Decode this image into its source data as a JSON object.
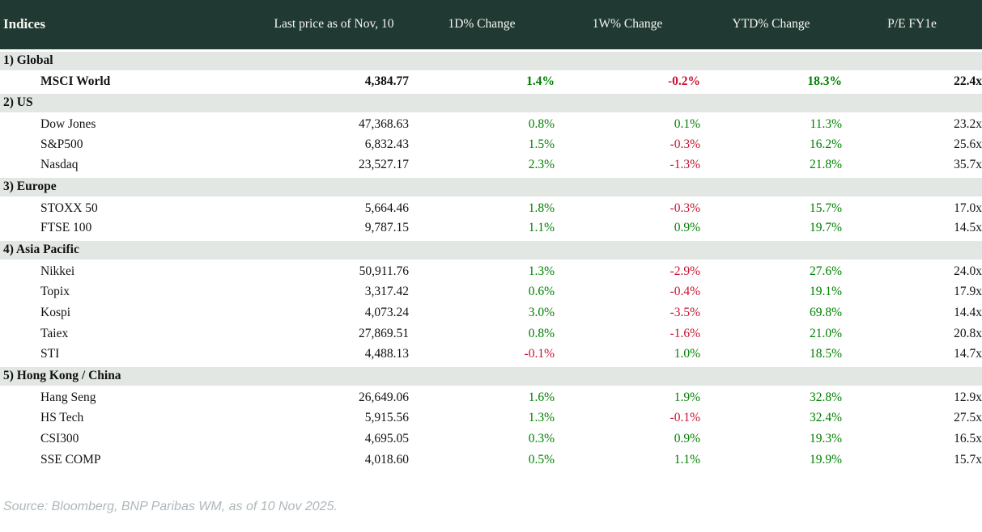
{
  "colors": {
    "header_bg": "#203a33",
    "section_bg": "#e3e7e3",
    "positive": "#008000",
    "negative": "#c8102e"
  },
  "table": {
    "columns": [
      "Indices",
      "Last price as of Nov, 10",
      "1D% Change",
      "1W% Change",
      "YTD% Change",
      "P/E FY1e"
    ],
    "sections": [
      {
        "label": "1) Global",
        "rows": [
          {
            "name": "MSCI World",
            "bold": true,
            "last": "4,384.77",
            "d1": "1.4%",
            "w1": "-0.2%",
            "ytd": "18.3%",
            "pe": "22.4x"
          }
        ]
      },
      {
        "label": "2) US",
        "rows": [
          {
            "name": "Dow Jones",
            "last": "47,368.63",
            "d1": "0.8%",
            "w1": "0.1%",
            "ytd": "11.3%",
            "pe": "23.2x"
          },
          {
            "name": "S&P500",
            "last": "6,832.43",
            "d1": "1.5%",
            "w1": "-0.3%",
            "ytd": "16.2%",
            "pe": "25.6x"
          },
          {
            "name": "Nasdaq",
            "last": "23,527.17",
            "d1": "2.3%",
            "w1": "-1.3%",
            "ytd": "21.8%",
            "pe": "35.7x"
          }
        ]
      },
      {
        "label": "3) Europe",
        "rows": [
          {
            "name": "STOXX 50",
            "last": "5,664.46",
            "d1": "1.8%",
            "w1": "-0.3%",
            "ytd": "15.7%",
            "pe": "17.0x"
          },
          {
            "name": "FTSE 100",
            "last": "9,787.15",
            "d1": "1.1%",
            "w1": "0.9%",
            "ytd": "19.7%",
            "pe": "14.5x"
          }
        ]
      },
      {
        "label": "4) Asia Pacific",
        "rows": [
          {
            "name": "Nikkei",
            "last": "50,911.76",
            "d1": "1.3%",
            "w1": "-2.9%",
            "ytd": "27.6%",
            "pe": "24.0x"
          },
          {
            "name": "Topix",
            "last": "3,317.42",
            "d1": "0.6%",
            "w1": "-0.4%",
            "ytd": "19.1%",
            "pe": "17.9x"
          },
          {
            "name": "Kospi",
            "last": "4,073.24",
            "d1": "3.0%",
            "w1": "-3.5%",
            "ytd": "69.8%",
            "pe": "14.4x"
          },
          {
            "name": "Taiex",
            "last": "27,869.51",
            "d1": "0.8%",
            "w1": "-1.6%",
            "ytd": "21.0%",
            "pe": "20.8x"
          },
          {
            "name": "STI",
            "last": "4,488.13",
            "d1": "-0.1%",
            "w1": "1.0%",
            "ytd": "18.5%",
            "pe": "14.7x"
          }
        ]
      },
      {
        "label": "5) Hong Kong / China",
        "rows": [
          {
            "name": "Hang Seng",
            "last": "26,649.06",
            "d1": "1.6%",
            "w1": "1.9%",
            "ytd": "32.8%",
            "pe": "12.9x"
          },
          {
            "name": "HS Tech",
            "last": "5,915.56",
            "d1": "1.3%",
            "w1": "-0.1%",
            "ytd": "32.4%",
            "pe": "27.5x"
          },
          {
            "name": "CSI300",
            "last": "4,695.05",
            "d1": "0.3%",
            "w1": "0.9%",
            "ytd": "19.3%",
            "pe": "16.5x"
          },
          {
            "name": "SSE COMP",
            "last": "4,018.60",
            "d1": "0.5%",
            "w1": "1.1%",
            "ytd": "19.9%",
            "pe": "15.7x"
          }
        ]
      }
    ]
  },
  "footer": {
    "source": "Source: Bloomberg, BNP Paribas WM, as of 10 Nov 2025."
  }
}
